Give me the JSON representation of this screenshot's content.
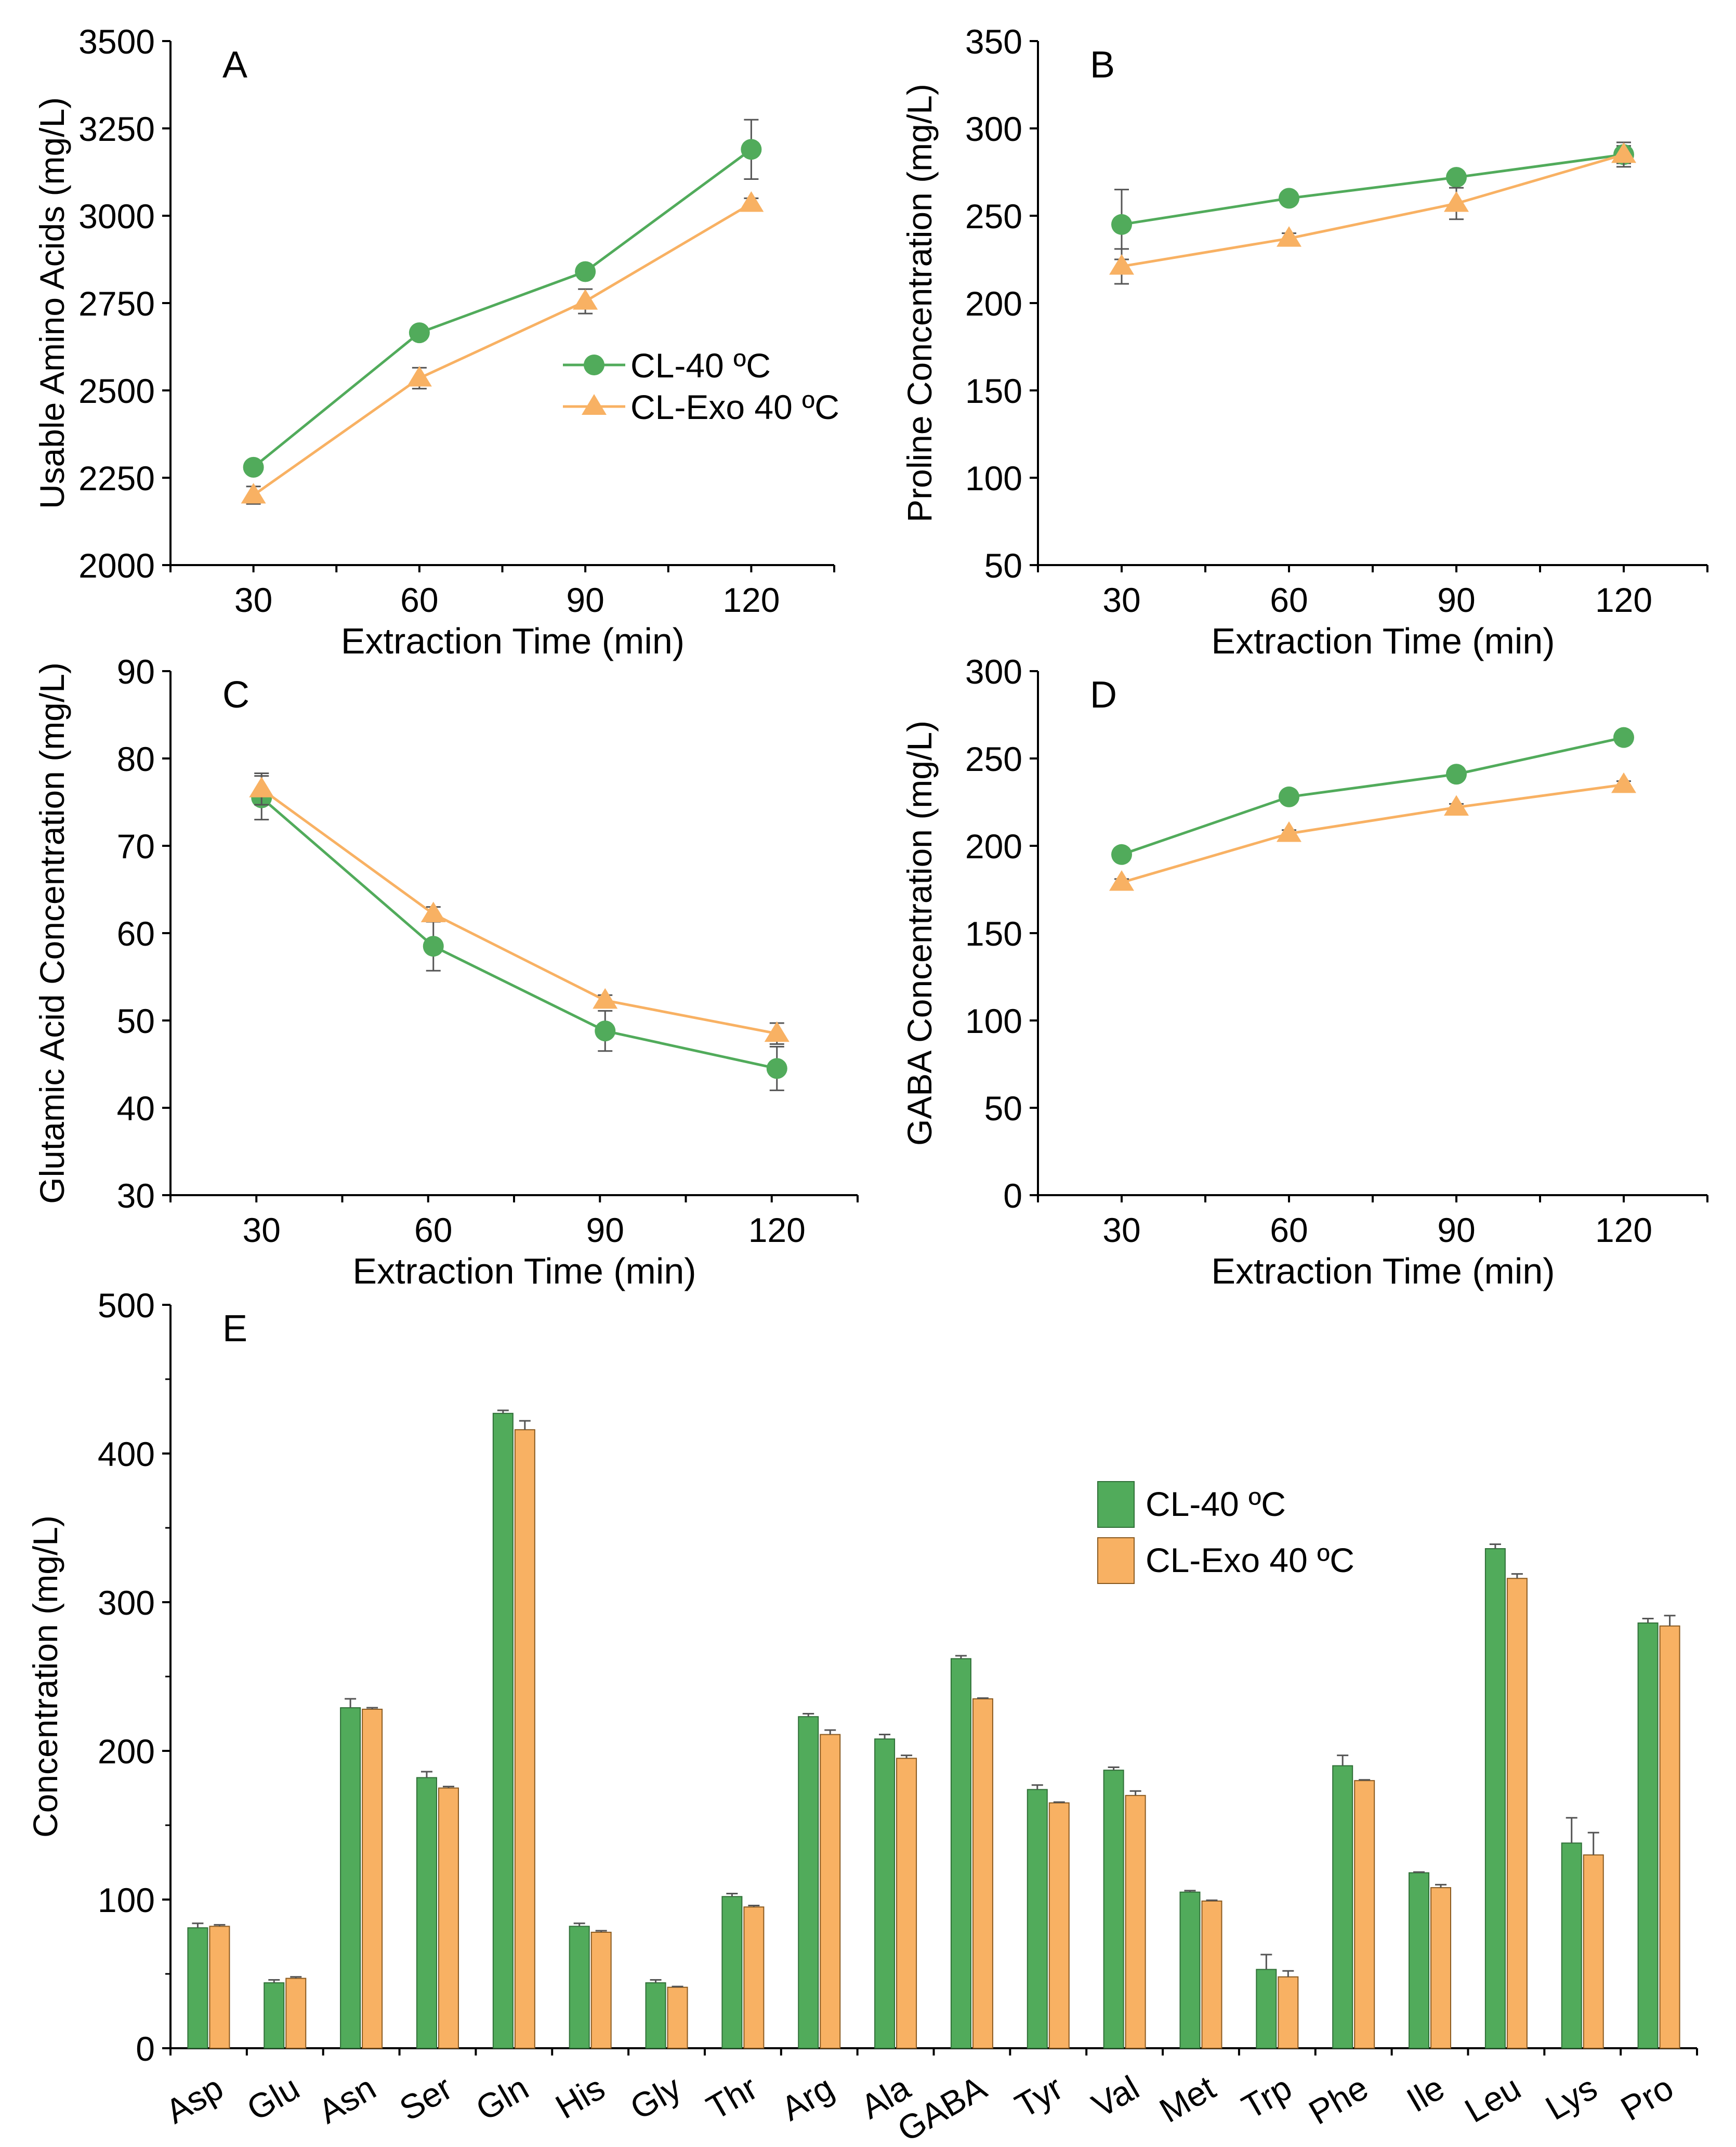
{
  "colors": {
    "green": "#51ab5b",
    "green_edge": "#2f6f37",
    "orange": "#f8b163",
    "orange_edge": "#8a5a20",
    "axis": "#000000",
    "error": "#555555"
  },
  "chart_data": [
    {
      "panel": "A",
      "type": "line",
      "xlabel": "Extraction Time (min)",
      "ylabel": "Usable Amino Acids (mg/L)",
      "x": [
        "30",
        "60",
        "90",
        "120"
      ],
      "ylim": [
        2000,
        3500
      ],
      "yticks": [
        2000,
        2250,
        2500,
        2750,
        3000,
        3250,
        3500
      ],
      "legend": "center-right",
      "series": [
        {
          "name": "CL-40 ºC",
          "marker": "circle",
          "values": [
            2280,
            2665,
            2840,
            3190
          ],
          "errors": [
            10,
            10,
            15,
            85
          ]
        },
        {
          "name": "CL-Exo 40 ºC",
          "marker": "triangle",
          "values": [
            2200,
            2535,
            2755,
            3035
          ],
          "errors": [
            25,
            30,
            35,
            15
          ]
        }
      ]
    },
    {
      "panel": "B",
      "type": "line",
      "xlabel": "Extraction Time (min)",
      "ylabel": "Proline Concentration (mg/L)",
      "x": [
        "30",
        "60",
        "90",
        "120"
      ],
      "ylim": [
        50,
        350
      ],
      "yticks": [
        50,
        100,
        150,
        200,
        250,
        300,
        350
      ],
      "series": [
        {
          "name": "CL-40 ºC",
          "marker": "circle",
          "values": [
            245,
            260,
            272,
            285
          ],
          "errors": [
            20,
            2,
            2,
            5
          ]
        },
        {
          "name": "CL-Exo 40 ºC",
          "marker": "triangle",
          "values": [
            221,
            237,
            257,
            285
          ],
          "errors": [
            10,
            3,
            9,
            7
          ]
        }
      ]
    },
    {
      "panel": "C",
      "type": "line",
      "xlabel": "Extraction Time (min)",
      "ylabel": "Glutamic Acid Concentration (mg/L)",
      "x": [
        "30",
        "60",
        "90",
        "120"
      ],
      "ylim": [
        30,
        90
      ],
      "yticks": [
        30,
        40,
        50,
        60,
        70,
        80,
        90
      ],
      "series": [
        {
          "name": "CL-40 ºC",
          "marker": "circle",
          "values": [
            75.5,
            58.5,
            48.8,
            44.5
          ],
          "errors": [
            2.5,
            2.8,
            2.3,
            2.5
          ]
        },
        {
          "name": "CL-Exo 40 ºC",
          "marker": "triangle",
          "values": [
            76.5,
            62.2,
            52.3,
            48.5
          ],
          "errors": [
            1.8,
            0.8,
            0.6,
            1.2
          ]
        }
      ]
    },
    {
      "panel": "D",
      "type": "line",
      "xlabel": "Extraction Time (min)",
      "ylabel": "GABA Concentration (mg/L)",
      "x": [
        "30",
        "60",
        "90",
        "120"
      ],
      "ylim": [
        0,
        300
      ],
      "yticks": [
        0,
        50,
        100,
        150,
        200,
        250,
        300
      ],
      "series": [
        {
          "name": "CL-40 ºC",
          "marker": "circle",
          "values": [
            195,
            228,
            241,
            262
          ],
          "errors": [
            2,
            2,
            2,
            2
          ]
        },
        {
          "name": "CL-Exo 40 ºC",
          "marker": "triangle",
          "values": [
            179,
            207,
            222,
            235
          ],
          "errors": [
            2,
            2,
            2,
            2
          ]
        }
      ]
    },
    {
      "panel": "E",
      "type": "bar",
      "xlabel": "",
      "ylabel": "Concentration (mg/L)",
      "ylim": [
        0,
        500
      ],
      "yticks": [
        0,
        100,
        200,
        300,
        400,
        500
      ],
      "legend": "upper-right",
      "categories": [
        "Asp",
        "Glu",
        "Asn",
        "Ser",
        "Gln",
        "His",
        "Gly",
        "Thr",
        "Arg",
        "Ala",
        "GABA",
        "Tyr",
        "Val",
        "Met",
        "Trp",
        "Phe",
        "Ile",
        "Leu",
        "Lys",
        "Pro"
      ],
      "series": [
        {
          "name": "CL-40 ºC",
          "values": [
            81,
            44,
            229,
            182,
            427,
            82,
            44,
            102,
            223,
            208,
            262,
            174,
            187,
            105,
            53,
            190,
            118,
            336,
            138,
            286
          ],
          "errors": [
            3,
            2,
            6,
            4,
            2,
            2,
            2,
            2,
            2,
            3,
            2,
            3,
            2,
            1,
            10,
            7,
            0.5,
            3,
            17,
            3
          ]
        },
        {
          "name": "CL-Exo 40 ºC",
          "values": [
            82,
            47,
            228,
            175,
            416,
            78,
            41,
            95,
            211,
            195,
            235,
            165,
            170,
            99,
            48,
            180,
            108,
            316,
            130,
            284
          ],
          "errors": [
            1,
            1,
            1,
            1,
            6,
            1,
            0.5,
            1,
            3,
            2,
            0.5,
            0.5,
            3,
            0.5,
            4,
            0.5,
            2,
            3,
            15,
            7
          ]
        }
      ]
    }
  ]
}
